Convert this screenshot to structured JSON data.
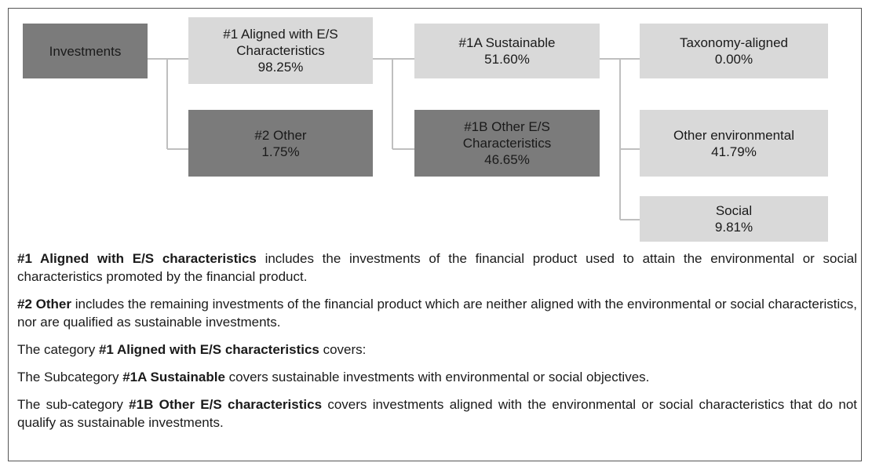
{
  "nodes": [
    {
      "label": "Investments",
      "style": "dark"
    },
    {
      "label": "#1 Aligned with E/S Characteristics",
      "value": "98.25%",
      "style": "light"
    },
    {
      "label": "#2 Other",
      "value": "1.75%",
      "style": "dark"
    },
    {
      "label": "#1A Sustainable",
      "value": "51.60%",
      "style": "light"
    },
    {
      "label": "#1B Other E/S Characteristics",
      "value": "46.65%",
      "style": "dark"
    },
    {
      "label": "Taxonomy-aligned",
      "value": "0.00%",
      "style": "light"
    },
    {
      "label": "Other environmental",
      "value": "41.79%",
      "style": "light"
    },
    {
      "label": "Social",
      "value": "9.81%",
      "style": "light"
    }
  ],
  "paragraphs": [
    {
      "runs": [
        {
          "text": "#1 Aligned with E/S characteristics",
          "bold": true
        },
        {
          "text": " includes the investments of the financial product used to attain the environmental or social characteristics promoted by the financial product."
        }
      ]
    },
    {
      "runs": [
        {
          "text": "#2 Other",
          "bold": true
        },
        {
          "text": " includes the remaining investments of the financial product which are neither aligned with the environmental or social characteristics, nor are qualified as sustainable investments."
        }
      ]
    },
    {
      "runs": [
        {
          "text": "The category "
        },
        {
          "text": "#1 Aligned with E/S characteristics",
          "bold": true
        },
        {
          "text": " covers:"
        }
      ]
    },
    {
      "runs": [
        {
          "text": "The Subcategory "
        },
        {
          "text": "#1A Sustainable",
          "bold": true
        },
        {
          "text": " covers sustainable investments with environmental or social objectives."
        }
      ]
    },
    {
      "runs": [
        {
          "text": "The sub-category "
        },
        {
          "text": "#1B Other E/S characteristics",
          "bold": true
        },
        {
          "text": " covers investments aligned with the environmental or social characteristics that do not qualify as sustainable investments."
        }
      ]
    }
  ]
}
